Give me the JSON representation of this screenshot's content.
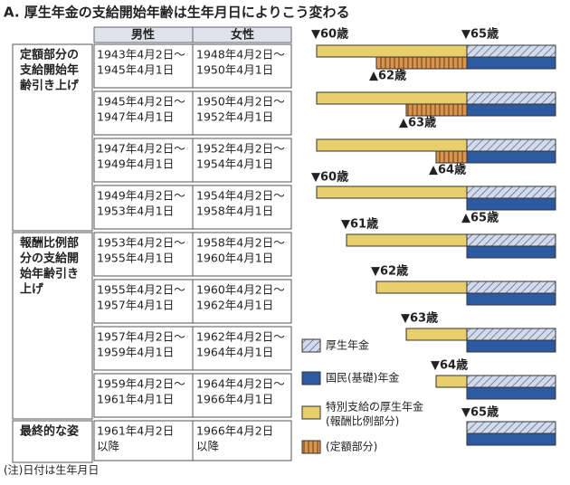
{
  "title": "A. 厚生年金の支給開始年齢は生年月日によりこう変わる",
  "table": {
    "headers": [
      "男性",
      "女性"
    ],
    "groups": [
      {
        "label": [
          "定額部分の",
          "支給開始年",
          "齢引き上げ"
        ],
        "rows": [
          {
            "male": [
              "1943年4月2日〜",
              "1945年4月1日"
            ],
            "female": [
              "1948年4月2日〜",
              "1950年4月1日"
            ]
          },
          {
            "male": [
              "1945年4月2日〜",
              "1947年4月1日"
            ],
            "female": [
              "1950年4月2日〜",
              "1952年4月1日"
            ]
          },
          {
            "male": [
              "1947年4月2日〜",
              "1949年4月1日"
            ],
            "female": [
              "1952年4月2日〜",
              "1954年4月1日"
            ]
          },
          {
            "male": [
              "1949年4月2日〜",
              "1953年4月1日"
            ],
            "female": [
              "1954年4月2日〜",
              "1958年4月1日"
            ]
          }
        ]
      },
      {
        "label": [
          "報酬比例部",
          "分の支給開",
          "始年齢引き",
          "上げ"
        ],
        "rows": [
          {
            "male": [
              "1953年4月2日〜",
              "1955年4月1日"
            ],
            "female": [
              "1958年4月2日〜",
              "1960年4月1日"
            ]
          },
          {
            "male": [
              "1955年4月2日〜",
              "1957年4月1日"
            ],
            "female": [
              "1960年4月2日〜",
              "1962年4月1日"
            ]
          },
          {
            "male": [
              "1957年4月2日〜",
              "1959年4月1日"
            ],
            "female": [
              "1962年4月2日〜",
              "1964年4月1日"
            ]
          },
          {
            "male": [
              "1959年4月2日〜",
              "1961年4月1日"
            ],
            "female": [
              "1964年4月2日〜",
              "1966年4月1日"
            ]
          }
        ]
      },
      {
        "label": [
          "最終的な姿"
        ],
        "rows": [
          {
            "male": [
              "1961年4月2日",
              "以降"
            ],
            "female": [
              "1966年4月2日",
              "以降"
            ]
          }
        ]
      }
    ]
  },
  "markers": [
    "▼60歳",
    "▼65歳",
    "▲62歳",
    "▲63歳",
    "▲64歳",
    "▼60歳",
    "▲65歳",
    "▼61歳",
    "▼62歳",
    "▼63歳",
    "▼64歳",
    "▼65歳"
  ],
  "legend": [
    [
      "厚生年金"
    ],
    [
      "国民(基礎)年金"
    ],
    [
      "特別支給の厚生年金",
      "(報酬比例部分)"
    ],
    [
      "(定額部分)"
    ]
  ],
  "note": "(注)日付は生年月日"
}
